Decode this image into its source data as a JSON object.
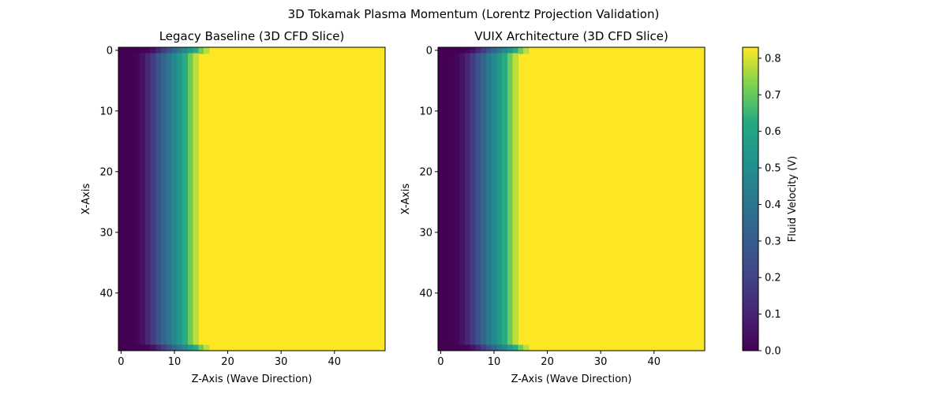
{
  "chart_data": {
    "type": "heatmap",
    "suptitle": "3D Tokamak Plasma Momentum (Lorentz Projection Validation)",
    "colormap": "viridis",
    "grid": false,
    "panels": [
      {
        "title": "Legacy Baseline (3D CFD Slice)",
        "xlabel": "Z-Axis (Wave Direction)",
        "ylabel": "X-Axis",
        "x_ticks": [
          0,
          10,
          20,
          30,
          40
        ],
        "y_ticks": [
          0,
          10,
          20,
          30,
          40
        ],
        "xlim": [
          0,
          49
        ],
        "ylim": [
          0,
          49
        ],
        "grid_size": [
          50,
          50
        ],
        "column_profile": [
          0.0,
          0.0,
          0.003,
          0.013,
          0.05,
          0.11,
          0.18,
          0.26,
          0.34,
          0.41,
          0.48,
          0.56,
          0.63,
          0.71,
          0.78,
          0.83,
          0.83
        ],
        "edge_rows_profile": [
          0.0,
          0.0,
          0.0,
          0.0,
          0.003,
          0.013,
          0.05,
          0.11,
          0.18,
          0.26,
          0.34,
          0.41,
          0.48,
          0.56,
          0.63,
          0.71,
          0.78,
          0.83
        ],
        "saturation_value": 0.83
      },
      {
        "title": "VUIX Architecture (3D CFD Slice)",
        "xlabel": "Z-Axis (Wave Direction)",
        "ylabel": "X-Axis",
        "x_ticks": [
          0,
          10,
          20,
          30,
          40
        ],
        "y_ticks": [
          0,
          10,
          20,
          30,
          40
        ],
        "xlim": [
          0,
          49
        ],
        "ylim": [
          0,
          49
        ],
        "grid_size": [
          50,
          50
        ],
        "column_profile": [
          0.0,
          0.0,
          0.003,
          0.013,
          0.05,
          0.11,
          0.18,
          0.26,
          0.34,
          0.41,
          0.48,
          0.56,
          0.63,
          0.71,
          0.78,
          0.83,
          0.83
        ],
        "edge_rows_profile": [
          0.0,
          0.0,
          0.0,
          0.0,
          0.003,
          0.013,
          0.05,
          0.11,
          0.18,
          0.26,
          0.34,
          0.41,
          0.48,
          0.56,
          0.63,
          0.71,
          0.78,
          0.83
        ],
        "saturation_value": 0.83
      }
    ],
    "colorbar": {
      "label": "Fluid Velocity (V)",
      "range": [
        0.0,
        0.83
      ],
      "ticks": [
        0.0,
        0.1,
        0.2,
        0.3,
        0.4,
        0.5,
        0.6,
        0.7,
        0.8
      ],
      "tick_labels": [
        "0.0",
        "0.1",
        "0.2",
        "0.3",
        "0.4",
        "0.5",
        "0.6",
        "0.7",
        "0.8"
      ]
    }
  }
}
